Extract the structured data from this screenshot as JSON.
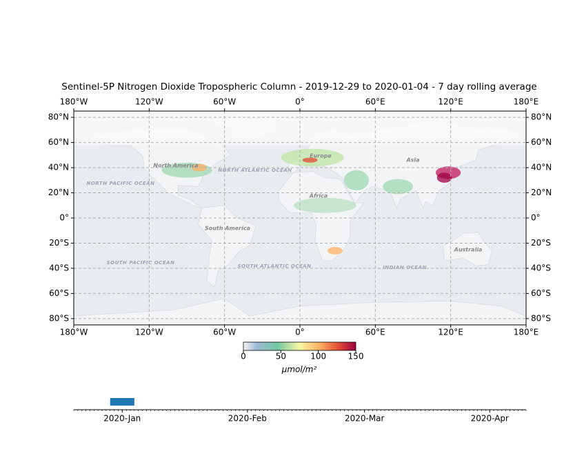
{
  "title": "Sentinel-5P Nitrogen Dioxide Tropospheric Column - 2019-12-29 to 2020-01-04 - 7 day rolling average",
  "map": {
    "xlim": [
      -180,
      180
    ],
    "ylim": [
      -85,
      85
    ],
    "xticks": [
      {
        "value": -180,
        "label": "180°W"
      },
      {
        "value": -120,
        "label": "120°W"
      },
      {
        "value": -60,
        "label": "60°W"
      },
      {
        "value": 0,
        "label": "0°"
      },
      {
        "value": 60,
        "label": "60°E"
      },
      {
        "value": 120,
        "label": "120°E"
      },
      {
        "value": 180,
        "label": "180°E"
      }
    ],
    "yticks": [
      {
        "value": 80,
        "label": "80°N"
      },
      {
        "value": 60,
        "label": "60°N"
      },
      {
        "value": 40,
        "label": "40°N"
      },
      {
        "value": 20,
        "label": "20°N"
      },
      {
        "value": 0,
        "label": "0°"
      },
      {
        "value": -20,
        "label": "20°S"
      },
      {
        "value": -40,
        "label": "40°S"
      },
      {
        "value": -60,
        "label": "60°S"
      },
      {
        "value": -80,
        "label": "80°S"
      }
    ],
    "grid": true,
    "labels": [
      "North America",
      "South America",
      "Europe",
      "Asia",
      "Africa",
      "Australia",
      "NORTH PACIFIC OCEAN",
      "NORTH ATLANTIC OCEAN",
      "SOUTH PACIFIC OCEAN",
      "SOUTH ATLANTIC OCEAN",
      "INDIAN OCEAN"
    ]
  },
  "colorbar": {
    "label": "μmol/m²",
    "lim": [
      0,
      150
    ],
    "ticks": [
      0,
      50,
      100,
      150
    ]
  },
  "timeline": {
    "xlim": [
      "2019-12-20",
      "2020-04-10"
    ],
    "xticks": [
      {
        "value": "2020-01-01",
        "label": "2020-Jan"
      },
      {
        "value": "2020-02-01",
        "label": "2020-Feb"
      },
      {
        "value": "2020-03-01",
        "label": "2020-Mar"
      },
      {
        "value": "2020-04-01",
        "label": "2020-Apr"
      }
    ],
    "window": [
      "2019-12-29",
      "2020-01-04"
    ],
    "color": "#1f77b4"
  }
}
